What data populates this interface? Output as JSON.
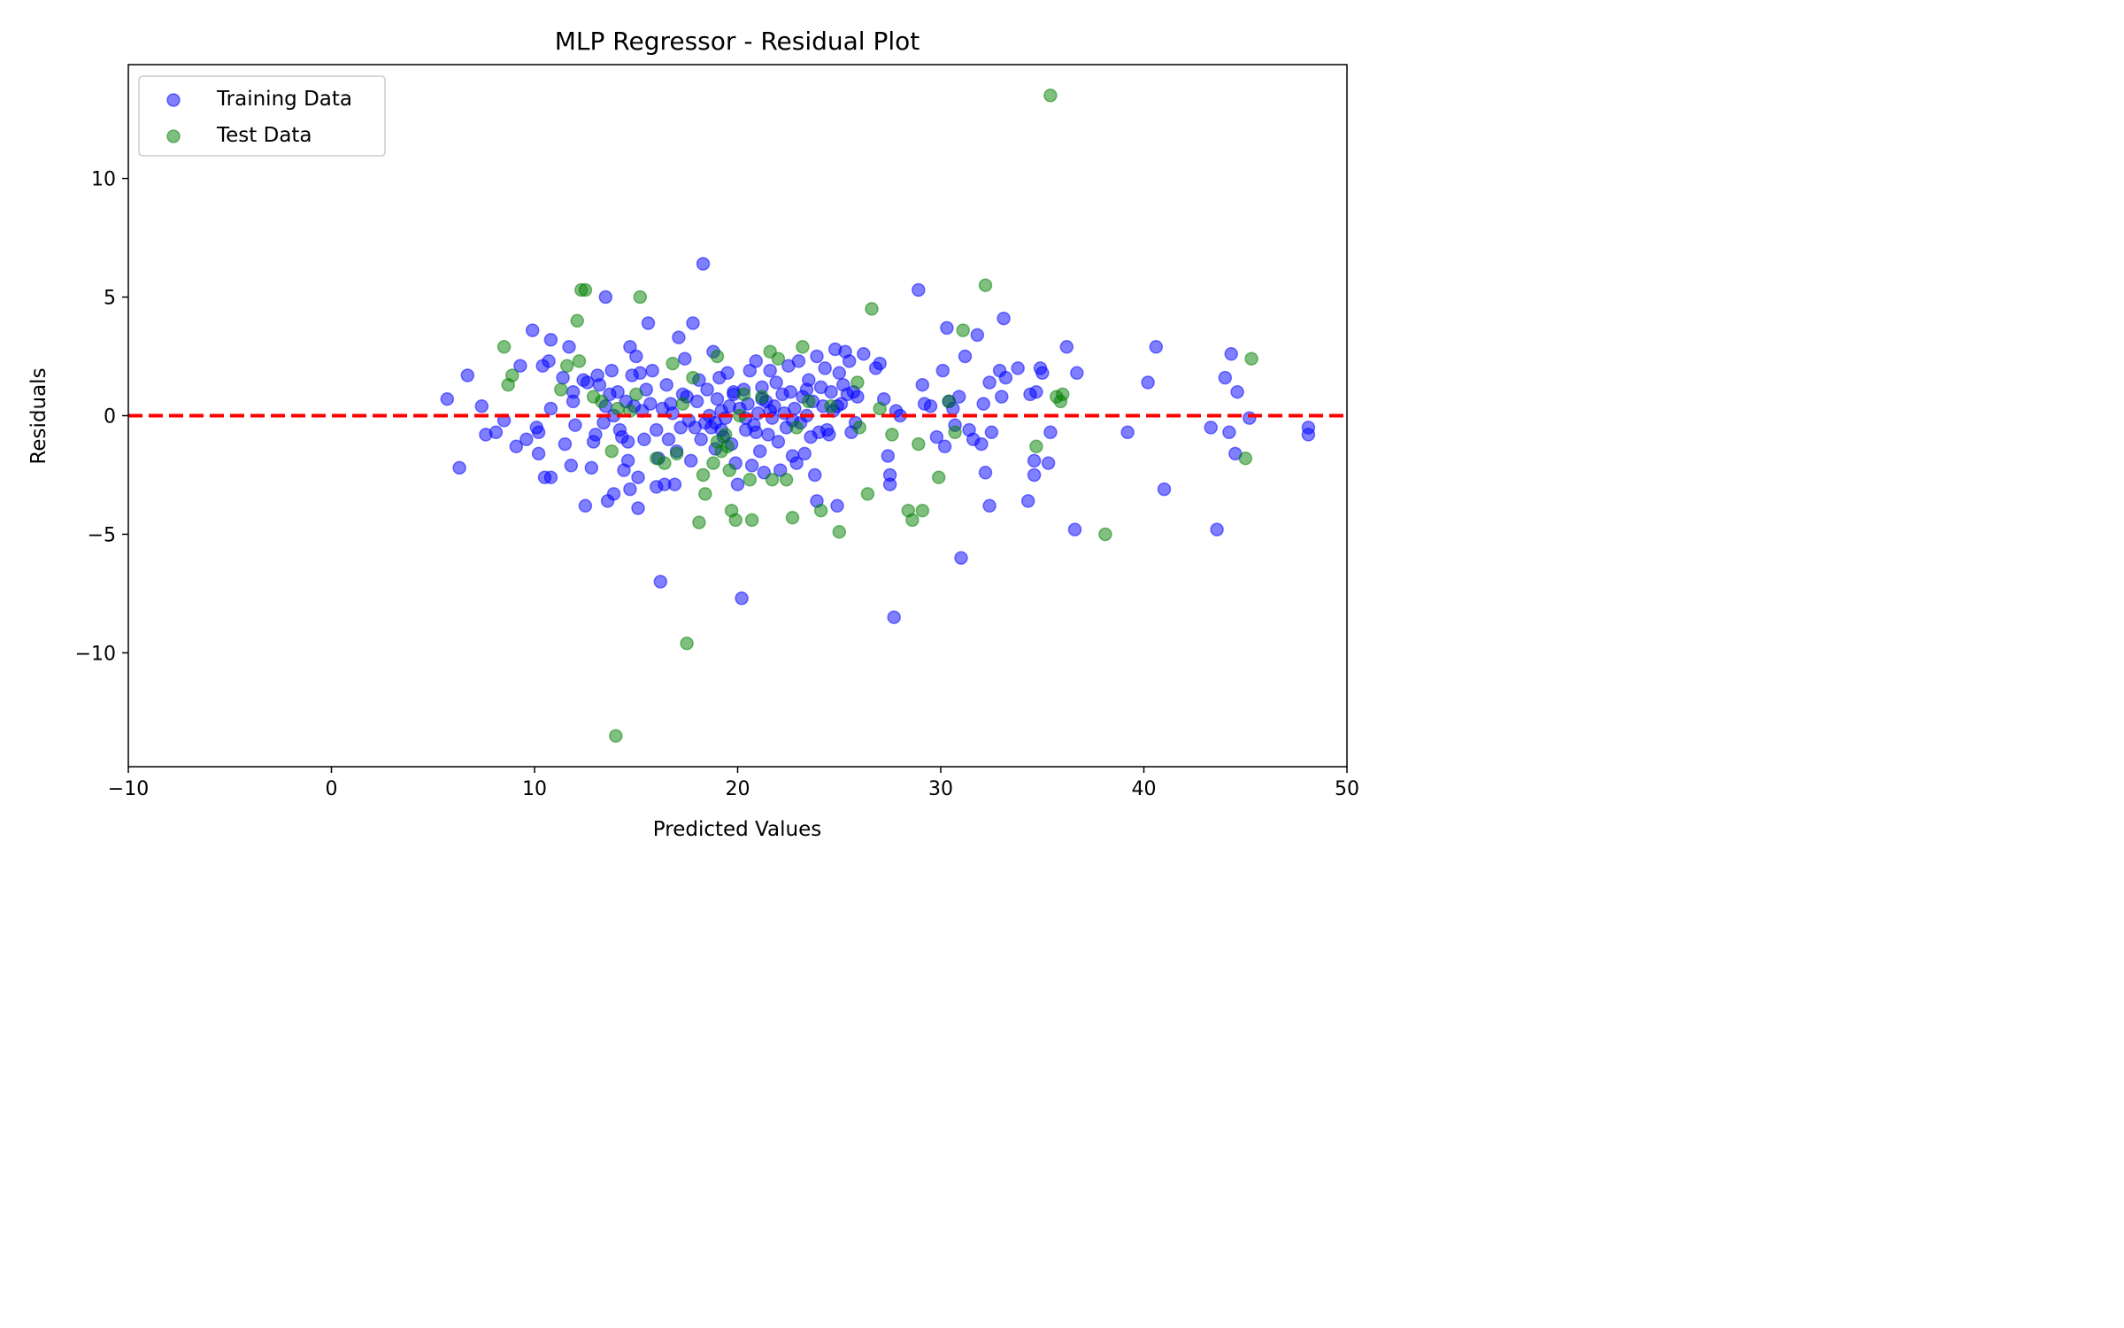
{
  "chart_data": {
    "type": "scatter",
    "title": "MLP Regressor - Residual Plot",
    "xlabel": "Predicted Values",
    "ylabel": "Residuals",
    "xlim": [
      -10,
      50
    ],
    "ylim": [
      -14.8,
      14.8
    ],
    "xticks": [
      -10,
      0,
      10,
      20,
      30,
      40,
      50
    ],
    "xtick_labels": [
      "−10",
      "0",
      "10",
      "20",
      "30",
      "40",
      "50"
    ],
    "yticks": [
      -10,
      -5,
      0,
      5,
      10
    ],
    "ytick_labels": [
      "−10",
      "−5",
      "0",
      "5",
      "10"
    ],
    "grid": false,
    "legend_position": "top-left",
    "reference_line": {
      "y": 0,
      "color": "#ff0000",
      "style": "dashed"
    },
    "series": [
      {
        "name": "Training Data",
        "color": "#0000ff",
        "points": [
          [
            5.7,
            0.7
          ],
          [
            6.3,
            -2.2
          ],
          [
            6.7,
            1.7
          ],
          [
            7.4,
            0.4
          ],
          [
            7.6,
            -0.8
          ],
          [
            8.1,
            -0.7
          ],
          [
            8.5,
            -0.2
          ],
          [
            9.1,
            -1.3
          ],
          [
            9.3,
            2.1
          ],
          [
            9.6,
            -1.0
          ],
          [
            9.9,
            3.6
          ],
          [
            10.1,
            -0.5
          ],
          [
            10.2,
            -0.7
          ],
          [
            10.2,
            -1.6
          ],
          [
            10.4,
            2.1
          ],
          [
            10.5,
            -2.6
          ],
          [
            10.7,
            2.3
          ],
          [
            10.8,
            3.2
          ],
          [
            10.8,
            -2.6
          ],
          [
            10.8,
            0.3
          ],
          [
            11.4,
            1.6
          ],
          [
            11.5,
            -1.2
          ],
          [
            11.7,
            2.9
          ],
          [
            11.8,
            -2.1
          ],
          [
            11.9,
            1.0
          ],
          [
            11.9,
            0.6
          ],
          [
            12.0,
            -0.4
          ],
          [
            12.5,
            -3.8
          ],
          [
            12.6,
            1.4
          ],
          [
            12.8,
            -2.2
          ],
          [
            12.9,
            -1.1
          ],
          [
            13.0,
            -0.8
          ],
          [
            13.1,
            1.7
          ],
          [
            13.2,
            1.3
          ],
          [
            13.4,
            -0.3
          ],
          [
            13.5,
            5.0
          ],
          [
            13.5,
            0.4
          ],
          [
            13.6,
            -3.6
          ],
          [
            13.7,
            0.9
          ],
          [
            13.8,
            1.9
          ],
          [
            13.9,
            -3.3
          ],
          [
            14.1,
            1.0
          ],
          [
            14.2,
            -0.6
          ],
          [
            14.3,
            -0.9
          ],
          [
            14.4,
            -2.3
          ],
          [
            14.5,
            0.6
          ],
          [
            14.6,
            -1.1
          ],
          [
            14.6,
            -1.9
          ],
          [
            14.7,
            2.9
          ],
          [
            14.7,
            -3.1
          ],
          [
            14.8,
            1.7
          ],
          [
            14.9,
            0.4
          ],
          [
            15.0,
            2.5
          ],
          [
            15.1,
            -2.6
          ],
          [
            15.1,
            -3.9
          ],
          [
            15.3,
            0.2
          ],
          [
            15.4,
            -1.0
          ],
          [
            15.5,
            1.1
          ],
          [
            15.6,
            3.9
          ],
          [
            15.7,
            0.5
          ],
          [
            15.8,
            1.9
          ],
          [
            16.0,
            -0.6
          ],
          [
            16.0,
            -3.0
          ],
          [
            16.1,
            -1.8
          ],
          [
            16.2,
            -7.0
          ],
          [
            16.3,
            0.3
          ],
          [
            16.4,
            -2.9
          ],
          [
            16.5,
            1.3
          ],
          [
            16.6,
            -1.0
          ],
          [
            16.8,
            0.1
          ],
          [
            16.9,
            -2.9
          ],
          [
            17.0,
            -1.5
          ],
          [
            17.1,
            3.3
          ],
          [
            17.2,
            -0.5
          ],
          [
            17.4,
            2.4
          ],
          [
            17.5,
            0.8
          ],
          [
            17.6,
            -0.2
          ],
          [
            17.7,
            -1.9
          ],
          [
            17.8,
            3.9
          ],
          [
            17.9,
            -0.5
          ],
          [
            18.0,
            0.6
          ],
          [
            18.1,
            1.5
          ],
          [
            18.2,
            -1.0
          ],
          [
            18.3,
            6.4
          ],
          [
            18.4,
            -0.3
          ],
          [
            18.5,
            1.1
          ],
          [
            18.6,
            0.0
          ],
          [
            18.7,
            -0.5
          ],
          [
            18.8,
            2.7
          ],
          [
            18.9,
            -1.4
          ],
          [
            19.0,
            0.7
          ],
          [
            19.1,
            1.6
          ],
          [
            19.2,
            0.2
          ],
          [
            19.3,
            -0.9
          ],
          [
            19.4,
            -0.1
          ],
          [
            19.5,
            1.8
          ],
          [
            19.6,
            0.4
          ],
          [
            19.7,
            -1.2
          ],
          [
            19.8,
            0.9
          ],
          [
            19.9,
            -2.0
          ],
          [
            20.0,
            -2.9
          ],
          [
            20.1,
            0.3
          ],
          [
            20.2,
            -7.7
          ],
          [
            20.3,
            1.1
          ],
          [
            20.4,
            -0.6
          ],
          [
            20.5,
            0.5
          ],
          [
            20.6,
            1.9
          ],
          [
            20.7,
            -2.1
          ],
          [
            20.8,
            -0.4
          ],
          [
            20.9,
            2.3
          ],
          [
            21.0,
            0.1
          ],
          [
            21.1,
            -1.5
          ],
          [
            21.2,
            1.2
          ],
          [
            21.3,
            -2.4
          ],
          [
            21.4,
            0.6
          ],
          [
            21.5,
            -0.8
          ],
          [
            21.6,
            1.9
          ],
          [
            21.7,
            -0.1
          ],
          [
            21.8,
            0.4
          ],
          [
            21.9,
            1.4
          ],
          [
            22.0,
            -1.1
          ],
          [
            22.1,
            -2.3
          ],
          [
            22.2,
            0.9
          ],
          [
            22.3,
            0.1
          ],
          [
            22.4,
            -0.5
          ],
          [
            22.5,
            2.1
          ],
          [
            22.6,
            1.0
          ],
          [
            22.7,
            -1.7
          ],
          [
            22.8,
            0.3
          ],
          [
            22.9,
            -2.0
          ],
          [
            23.0,
            2.3
          ],
          [
            23.1,
            -0.3
          ],
          [
            23.2,
            0.8
          ],
          [
            23.3,
            -1.6
          ],
          [
            23.4,
            0.0
          ],
          [
            23.5,
            1.5
          ],
          [
            23.6,
            -0.9
          ],
          [
            23.7,
            0.6
          ],
          [
            23.8,
            -2.5
          ],
          [
            23.9,
            2.5
          ],
          [
            23.9,
            -3.6
          ],
          [
            24.0,
            -0.7
          ],
          [
            24.1,
            1.2
          ],
          [
            24.2,
            0.4
          ],
          [
            24.3,
            2.0
          ],
          [
            24.4,
            -0.6
          ],
          [
            24.5,
            -0.8
          ],
          [
            24.6,
            1.0
          ],
          [
            24.7,
            0.2
          ],
          [
            24.8,
            2.8
          ],
          [
            24.9,
            -3.8
          ],
          [
            25.0,
            1.8
          ],
          [
            25.1,
            0.5
          ],
          [
            25.2,
            1.3
          ],
          [
            25.3,
            2.7
          ],
          [
            25.4,
            0.9
          ],
          [
            25.5,
            2.3
          ],
          [
            25.6,
            -0.7
          ],
          [
            25.7,
            1.0
          ],
          [
            25.8,
            -0.3
          ],
          [
            25.9,
            0.8
          ],
          [
            26.2,
            2.6
          ],
          [
            26.8,
            2.0
          ],
          [
            27.0,
            2.2
          ],
          [
            27.2,
            0.7
          ],
          [
            27.4,
            -1.7
          ],
          [
            27.5,
            -2.5
          ],
          [
            27.5,
            -2.9
          ],
          [
            27.7,
            -8.5
          ],
          [
            27.8,
            0.2
          ],
          [
            28.0,
            0.0
          ],
          [
            28.9,
            5.3
          ],
          [
            29.1,
            1.3
          ],
          [
            29.2,
            0.5
          ],
          [
            29.5,
            0.4
          ],
          [
            29.8,
            -0.9
          ],
          [
            30.1,
            1.9
          ],
          [
            30.2,
            -1.3
          ],
          [
            30.3,
            3.7
          ],
          [
            30.4,
            0.6
          ],
          [
            30.6,
            0.3
          ],
          [
            30.7,
            -0.4
          ],
          [
            30.9,
            0.8
          ],
          [
            31.0,
            -6.0
          ],
          [
            31.2,
            2.5
          ],
          [
            31.4,
            -0.6
          ],
          [
            31.6,
            -1.0
          ],
          [
            31.8,
            3.4
          ],
          [
            32.0,
            -1.2
          ],
          [
            32.1,
            0.5
          ],
          [
            32.2,
            -2.4
          ],
          [
            32.4,
            -3.8
          ],
          [
            32.4,
            1.4
          ],
          [
            32.5,
            -0.7
          ],
          [
            32.9,
            1.9
          ],
          [
            33.0,
            0.8
          ],
          [
            33.1,
            4.1
          ],
          [
            33.2,
            1.6
          ],
          [
            33.8,
            2.0
          ],
          [
            34.3,
            -3.6
          ],
          [
            34.4,
            0.9
          ],
          [
            34.6,
            -2.5
          ],
          [
            34.6,
            -1.9
          ],
          [
            34.7,
            1.0
          ],
          [
            34.9,
            2.0
          ],
          [
            35.0,
            1.8
          ],
          [
            35.3,
            -2.0
          ],
          [
            35.4,
            -0.7
          ],
          [
            36.2,
            2.9
          ],
          [
            36.6,
            -4.8
          ],
          [
            36.7,
            1.8
          ],
          [
            39.2,
            -0.7
          ],
          [
            40.2,
            1.4
          ],
          [
            40.6,
            2.9
          ],
          [
            41.0,
            -3.1
          ],
          [
            43.3,
            -0.5
          ],
          [
            43.6,
            -4.8
          ],
          [
            44.0,
            1.6
          ],
          [
            44.2,
            -0.7
          ],
          [
            44.3,
            2.6
          ],
          [
            44.5,
            -1.6
          ],
          [
            44.6,
            1.0
          ],
          [
            45.2,
            -0.1
          ],
          [
            48.1,
            -0.5
          ],
          [
            48.1,
            -0.8
          ],
          [
            19.2,
            -0.6
          ],
          [
            20.4,
            -0.1
          ],
          [
            21.6,
            0.2
          ],
          [
            18.9,
            -0.3
          ],
          [
            22.7,
            -0.2
          ],
          [
            17.3,
            0.9
          ],
          [
            19.8,
            1.0
          ],
          [
            21.2,
            0.7
          ],
          [
            23.4,
            1.1
          ],
          [
            24.9,
            0.4
          ],
          [
            16.7,
            0.5
          ],
          [
            15.2,
            1.8
          ],
          [
            13.9,
            0.0
          ],
          [
            12.4,
            1.5
          ],
          [
            20.9,
            -0.7
          ]
        ]
      },
      {
        "name": "Test Data",
        "color": "#008000",
        "points": [
          [
            8.5,
            2.9
          ],
          [
            8.7,
            1.3
          ],
          [
            8.9,
            1.7
          ],
          [
            11.3,
            1.1
          ],
          [
            11.6,
            2.1
          ],
          [
            12.1,
            4.0
          ],
          [
            12.2,
            2.3
          ],
          [
            12.3,
            5.3
          ],
          [
            12.5,
            5.3
          ],
          [
            12.9,
            0.8
          ],
          [
            13.3,
            0.6
          ],
          [
            13.8,
            -1.5
          ],
          [
            14.0,
            -13.5
          ],
          [
            14.1,
            0.3
          ],
          [
            14.7,
            0.2
          ],
          [
            15.0,
            0.9
          ],
          [
            15.2,
            5.0
          ],
          [
            16.0,
            -1.8
          ],
          [
            16.4,
            -2.0
          ],
          [
            16.8,
            2.2
          ],
          [
            17.0,
            -1.6
          ],
          [
            17.3,
            0.5
          ],
          [
            17.5,
            -9.6
          ],
          [
            17.8,
            1.6
          ],
          [
            18.1,
            -4.5
          ],
          [
            18.3,
            -2.5
          ],
          [
            18.4,
            -3.3
          ],
          [
            18.8,
            -2.0
          ],
          [
            19.0,
            2.5
          ],
          [
            19.2,
            -1.5
          ],
          [
            19.4,
            -0.8
          ],
          [
            19.6,
            -2.3
          ],
          [
            19.7,
            -4.0
          ],
          [
            19.9,
            -4.4
          ],
          [
            20.3,
            0.9
          ],
          [
            20.6,
            -2.7
          ],
          [
            20.7,
            -4.4
          ],
          [
            21.2,
            0.8
          ],
          [
            21.6,
            2.7
          ],
          [
            21.7,
            -2.7
          ],
          [
            22.0,
            2.4
          ],
          [
            22.4,
            -2.7
          ],
          [
            22.7,
            -4.3
          ],
          [
            23.2,
            2.9
          ],
          [
            23.5,
            0.6
          ],
          [
            24.1,
            -4.0
          ],
          [
            24.6,
            0.4
          ],
          [
            25.0,
            -4.9
          ],
          [
            25.9,
            1.4
          ],
          [
            26.0,
            -0.5
          ],
          [
            26.4,
            -3.3
          ],
          [
            26.6,
            4.5
          ],
          [
            27.0,
            0.3
          ],
          [
            27.6,
            -0.8
          ],
          [
            28.4,
            -4.0
          ],
          [
            28.6,
            -4.4
          ],
          [
            28.9,
            -1.2
          ],
          [
            29.1,
            -4.0
          ],
          [
            29.9,
            -2.6
          ],
          [
            30.4,
            0.6
          ],
          [
            30.7,
            -0.7
          ],
          [
            31.1,
            3.6
          ],
          [
            32.2,
            5.5
          ],
          [
            34.7,
            -1.3
          ],
          [
            35.4,
            13.5
          ],
          [
            35.7,
            0.8
          ],
          [
            35.9,
            0.6
          ],
          [
            36.0,
            0.9
          ],
          [
            38.1,
            -5.0
          ],
          [
            45.0,
            -1.8
          ],
          [
            45.3,
            2.4
          ],
          [
            19.0,
            -1.1
          ],
          [
            19.5,
            -1.3
          ],
          [
            20.1,
            0.0
          ],
          [
            22.9,
            -0.5
          ]
        ]
      }
    ]
  }
}
